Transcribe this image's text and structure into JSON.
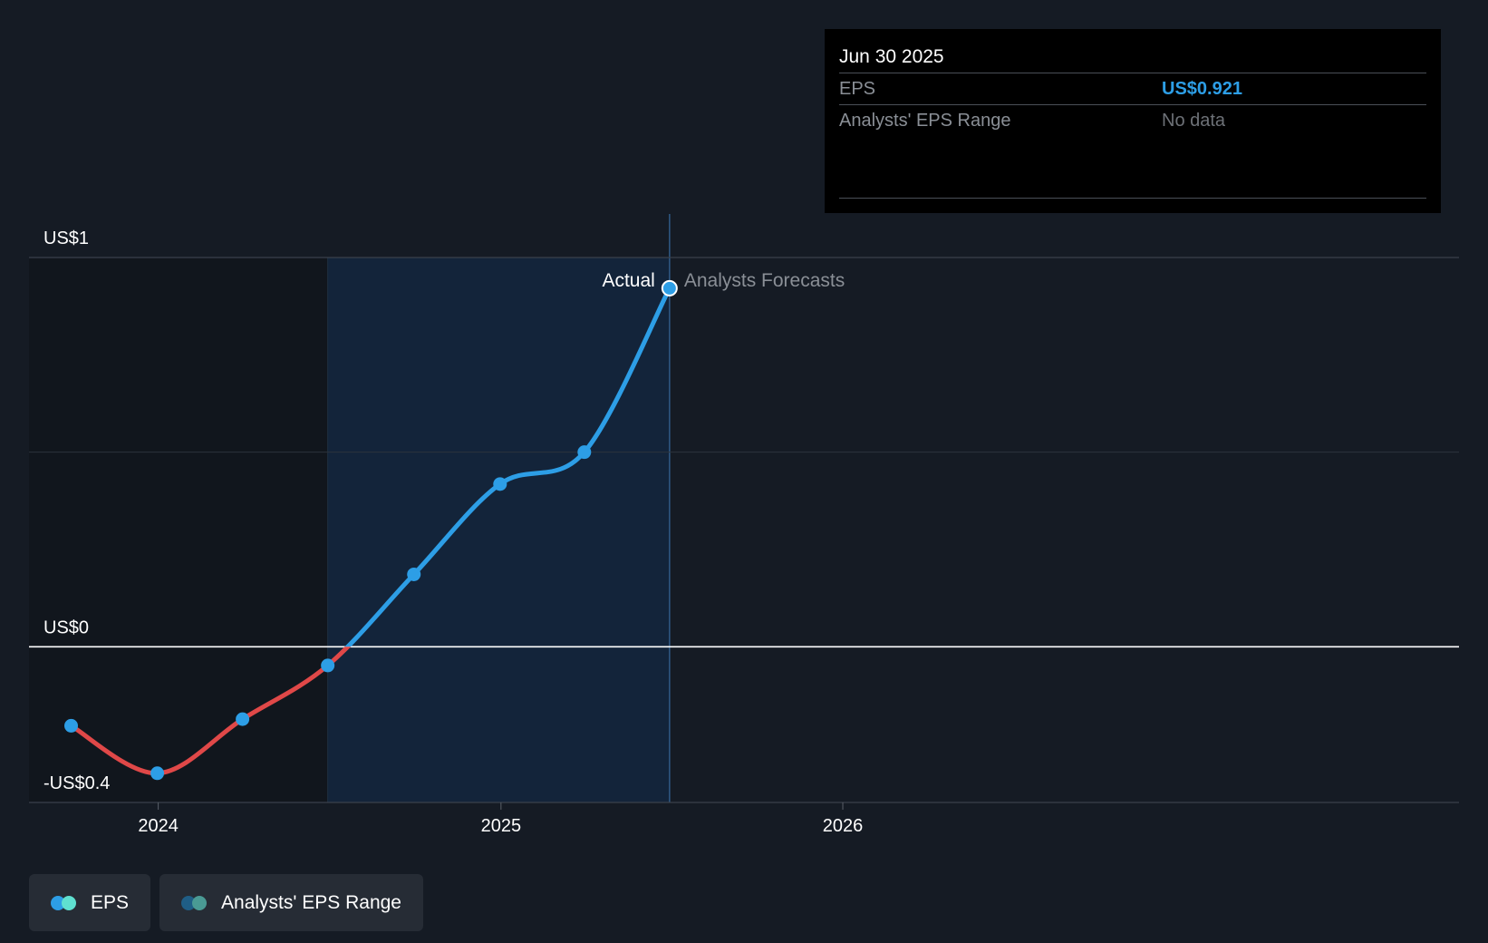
{
  "tooltip": {
    "date": "Jun 30 2025",
    "rows": [
      {
        "label": "EPS",
        "value": "US$0.921"
      },
      {
        "label": "Analysts' EPS Range",
        "value": "No data"
      }
    ]
  },
  "legend": [
    {
      "label": "EPS",
      "colors": [
        "#2d9ee6",
        "#5fe0d0"
      ]
    },
    {
      "label": "Analysts' EPS Range",
      "colors": [
        "#1f5e86",
        "#4a9a94"
      ]
    }
  ],
  "chart_data": {
    "type": "line",
    "title": "",
    "xlabel": "",
    "ylabel": "",
    "ylim": [
      -0.4,
      1.0
    ],
    "y_ticks": [
      {
        "value": 1,
        "label": "US$1"
      },
      {
        "value": 0,
        "label": "US$0"
      },
      {
        "value": -0.4,
        "label": "-US$0.4"
      }
    ],
    "x_ticks": [
      {
        "value": "2024-01-01",
        "label": "2024"
      },
      {
        "value": "2025-01-01",
        "label": "2025"
      },
      {
        "value": "2026-01-01",
        "label": "2026"
      }
    ],
    "xlim": [
      "2023-08-16",
      "2027-10-21"
    ],
    "actual_label": "Actual",
    "forecast_label": "Analysts Forecasts",
    "shade_start": "2024-06-30",
    "actual_end": "2025-06-30",
    "colors": {
      "positive": "#2d9ee6",
      "negative": "#e04848",
      "zero_line": "#ffffff",
      "grid": "#2c333d"
    },
    "series": [
      {
        "name": "EPS",
        "points": [
          {
            "x": "2023-09-30",
            "y": -0.203
          },
          {
            "x": "2023-12-31",
            "y": -0.325
          },
          {
            "x": "2024-03-31",
            "y": -0.186
          },
          {
            "x": "2024-06-30",
            "y": -0.048
          },
          {
            "x": "2024-09-30",
            "y": 0.186
          },
          {
            "x": "2024-12-31",
            "y": 0.418
          },
          {
            "x": "2025-03-31",
            "y": 0.5
          },
          {
            "x": "2025-06-30",
            "y": 0.921
          }
        ]
      }
    ]
  }
}
